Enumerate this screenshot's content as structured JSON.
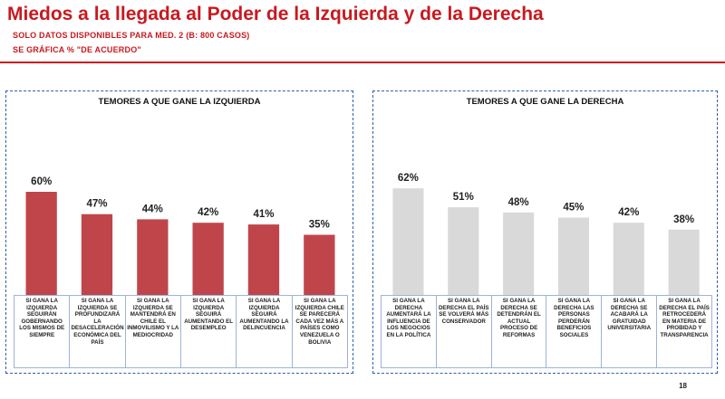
{
  "title": "Miedos a la llegada al Poder de la Izquierda y de la Derecha",
  "subtitle1": "SOLO DATOS DISPONIBLES PARA MED. 2 (B: 800 CASOS)",
  "subtitle2": "SE GRÁFICA % \"DE ACUERDO\"",
  "page_number": "18",
  "colors": {
    "left_bar": "#c0454a",
    "right_bar": "#d9d9d9",
    "accent": "#c8191f"
  },
  "chart_data": [
    {
      "type": "bar",
      "title": "TEMORES A QUE GANE LA IZQUIERDA",
      "categories": [
        "SI GANA LA IZQUIERDA SEGUIRÁN GOBERNANDO LOS MISMOS DE SIEMPRE",
        "SI GANA LA IZQUIERDA SE PROFUNDIZARÁ LA DESACELERACIÓN ECONÓMICA DEL PAÍS",
        "SI GANA LA IZQUIERDA SE MANTENDRÁ EN CHILE EL INMOVILISMO Y LA MEDIOCRIDAD",
        "SI GANA LA IZQUIERDA SEGUIRÁ AUMENTANDO EL DESEMPLEO",
        "SI GANA LA IZQUIERDA SEGUIRÁ AUMENTANDO LA DELINCUENCIA",
        "SI GANA LA IZQUIERDA CHILE SE PARECERÁ CADA VEZ MÁS A PAÍSES COMO VENEZUELA O BOLIVIA"
      ],
      "values": [
        60,
        47,
        44,
        42,
        41,
        35
      ],
      "value_labels": [
        "60%",
        "47%",
        "44%",
        "42%",
        "41%",
        "35%"
      ],
      "ylim": [
        0,
        100
      ],
      "grid": false
    },
    {
      "type": "bar",
      "title": "TEMORES A QUE GANE LA DERECHA",
      "categories": [
        "SI GANA LA DERECHA AUMENTARÁ LA INFLUENCIA DE LOS NEGOCIOS EN LA POLÍTICA",
        "SI GANA LA DERECHA EL PAÍS SE VOLVERÁ MÁS CONSERVADOR",
        "SI GANA LA DERECHA SE DETENDRÁN EL ACTUAL PROCESO DE REFORMAS",
        "SI GANA LA DERECHA LAS PERSONAS PERDERÁN BENEFICIOS SOCIALES",
        "SI GANA LA DERECHA SE ACABARÁ LA GRATUIDAD UNIVERSITARIA",
        "SI GANA LA DERECHA EL PAÍS RETROCEDERÁ EN MATERIA DE PROBIDAD Y TRANSPARENCIA"
      ],
      "values": [
        62,
        51,
        48,
        45,
        42,
        38
      ],
      "value_labels": [
        "62%",
        "51%",
        "48%",
        "45%",
        "42%",
        "38%"
      ],
      "ylim": [
        0,
        100
      ],
      "grid": false
    }
  ]
}
